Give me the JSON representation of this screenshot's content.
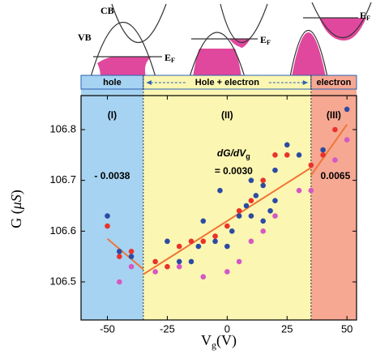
{
  "chart_data": {
    "type": "scatter",
    "x_label": {
      "symbol": "V",
      "sub": "g",
      "unit": "(V)"
    },
    "y_label": {
      "text": "G (",
      "unit": "μS",
      "close": ")"
    },
    "xlim": [
      -61,
      54
    ],
    "ylim": [
      106.425,
      106.867
    ],
    "xticks": [
      -50,
      -25,
      0,
      25,
      50
    ],
    "yticks": [
      106.5,
      106.6,
      106.7,
      106.8
    ],
    "regions": [
      {
        "label": "hole",
        "range": [
          -61,
          -35
        ],
        "color": "#a6d3f2",
        "roman": "(I)",
        "slope": "- 0.0038"
      },
      {
        "label": "Hole + electron",
        "range": [
          -35,
          35
        ],
        "color": "#fbf6b2",
        "roman": "(II)",
        "slope": "= 0.0030",
        "slope_name": {
          "main": "dG/dV",
          "sub": "g"
        }
      },
      {
        "label": "electron",
        "range": [
          35,
          54
        ],
        "color": "#f6a893",
        "roman": "(III)",
        "slope": "0.0065"
      }
    ],
    "series": [
      {
        "color": "#2b4ba3",
        "x": [
          -50,
          -45,
          -40,
          -25,
          -20,
          -15,
          -12,
          -10,
          -5,
          -3,
          0,
          2,
          5,
          8,
          10,
          10,
          12,
          15,
          15,
          18,
          20,
          20,
          25,
          30,
          40,
          50
        ],
        "values": [
          106.63,
          106.56,
          106.55,
          106.58,
          106.54,
          106.54,
          106.57,
          106.62,
          106.58,
          106.68,
          106.57,
          106.6,
          106.63,
          106.65,
          106.63,
          106.7,
          106.67,
          106.62,
          106.69,
          106.64,
          106.72,
          106.66,
          106.77,
          106.75,
          106.76,
          106.84
        ]
      },
      {
        "color": "#e8332b",
        "x": [
          -50,
          -45,
          -40,
          -30,
          -25,
          -20,
          -15,
          -10,
          -5,
          0,
          5,
          10,
          15,
          20,
          25,
          35,
          40,
          45
        ],
        "values": [
          106.61,
          106.55,
          106.56,
          106.54,
          106.53,
          106.57,
          106.58,
          106.58,
          106.59,
          106.61,
          106.64,
          106.66,
          106.7,
          106.75,
          106.75,
          106.73,
          106.75,
          106.8
        ]
      },
      {
        "color": "#d558c4",
        "x": [
          -45,
          -40,
          -30,
          -20,
          -10,
          0,
          5,
          10,
          15,
          20,
          30,
          35,
          45,
          50
        ],
        "values": [
          106.5,
          106.53,
          106.52,
          106.53,
          106.51,
          106.52,
          106.54,
          106.58,
          106.6,
          106.63,
          106.68,
          106.68,
          106.74,
          106.78
        ]
      }
    ],
    "fit_lines": [
      {
        "color": "#f07536",
        "x": [
          -50,
          -35
        ],
        "values": [
          106.585,
          106.525
        ]
      },
      {
        "color": "#f07536",
        "x": [
          -35,
          35
        ],
        "values": [
          106.515,
          106.725
        ]
      },
      {
        "color": "#f07536",
        "x": [
          35,
          50
        ],
        "values": [
          106.71,
          106.81
        ]
      }
    ],
    "band_labels": {
      "cb": "CB",
      "vb": "VB",
      "ef": [
        {
          "main": "E",
          "sub": "F"
        },
        {
          "main": "E",
          "sub": "F"
        },
        {
          "main": "E",
          "sub": "F"
        }
      ]
    }
  }
}
